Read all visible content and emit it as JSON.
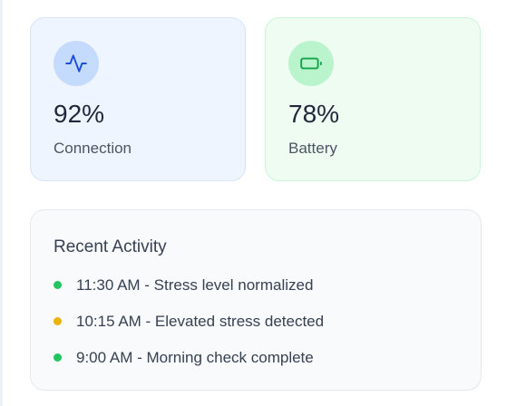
{
  "stats": {
    "connection": {
      "value": "92%",
      "label": "Connection",
      "icon": "activity-pulse-icon",
      "accent": "#1d4ed8"
    },
    "battery": {
      "value": "78%",
      "label": "Battery",
      "icon": "battery-icon",
      "accent": "#16a34a"
    }
  },
  "activity": {
    "title": "Recent Activity",
    "items": [
      {
        "text": "11:30 AM - Stress level normalized",
        "status_color": "#22c55e"
      },
      {
        "text": "10:15 AM - Elevated stress detected",
        "status_color": "#eab308"
      },
      {
        "text": "9:00 AM - Morning check complete",
        "status_color": "#22c55e"
      }
    ]
  }
}
